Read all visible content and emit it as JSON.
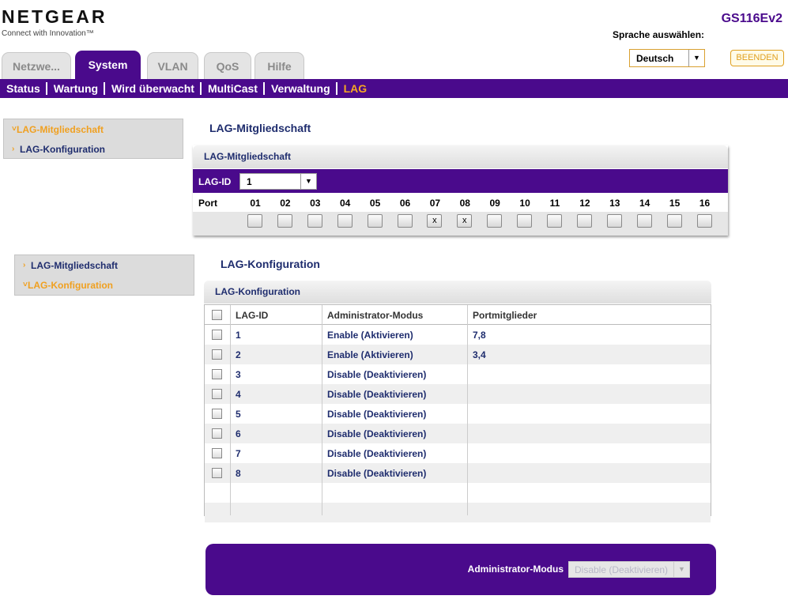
{
  "header": {
    "logo": "NETGEAR",
    "tagline": "Connect with Innovation™",
    "model": "GS116Ev2",
    "language_label": "Sprache auswählen:",
    "language": "Deutsch",
    "logout": "BEENDEN"
  },
  "tabs": [
    "Netzwe...",
    "System",
    "VLAN",
    "QoS",
    "Hilfe"
  ],
  "subnav": [
    "Status",
    "Wartung",
    "Wird überwacht",
    "MultiCast",
    "Verwaltung",
    "LAG"
  ],
  "sidebar_top": [
    "LAG-Mitgliedschaft",
    "LAG-Konfiguration"
  ],
  "sidebar_bottom": [
    "LAG-Mitgliedschaft",
    "LAG-Konfiguration"
  ],
  "membership": {
    "heading": "LAG-Mitgliedschaft",
    "panel_title": "LAG-Mitgliedschaft",
    "lag_id_label": "LAG-ID",
    "lag_id": "1",
    "port_label": "Port",
    "ports": [
      "01",
      "02",
      "03",
      "04",
      "05",
      "06",
      "07",
      "08",
      "09",
      "10",
      "11",
      "12",
      "13",
      "14",
      "15",
      "16"
    ],
    "port_checks": [
      null,
      null,
      null,
      null,
      null,
      null,
      "x",
      "x",
      null,
      null,
      null,
      null,
      null,
      null,
      null,
      null
    ]
  },
  "config": {
    "heading": "LAG-Konfiguration",
    "panel_title": "LAG-Konfiguration",
    "columns": [
      "LAG-ID",
      "Administrator-Modus",
      "Portmitglieder"
    ],
    "rows": [
      [
        "1",
        "Enable (Aktivieren)",
        "7,8"
      ],
      [
        "2",
        "Enable (Aktivieren)",
        "3,4"
      ],
      [
        "3",
        "Disable (Deaktivieren)"
      ],
      [
        "4",
        "Disable (Deaktivieren)"
      ],
      [
        "5",
        "Disable (Deaktivieren)"
      ],
      [
        "6",
        "Disable (Deaktivieren)"
      ],
      [
        "7",
        "Disable (Deaktivieren)"
      ],
      [
        "8",
        "Disable (Deaktivieren)"
      ]
    ]
  },
  "footer": {
    "label": "Administrator-Modus",
    "value": "Disable (Deaktivieren)"
  }
}
